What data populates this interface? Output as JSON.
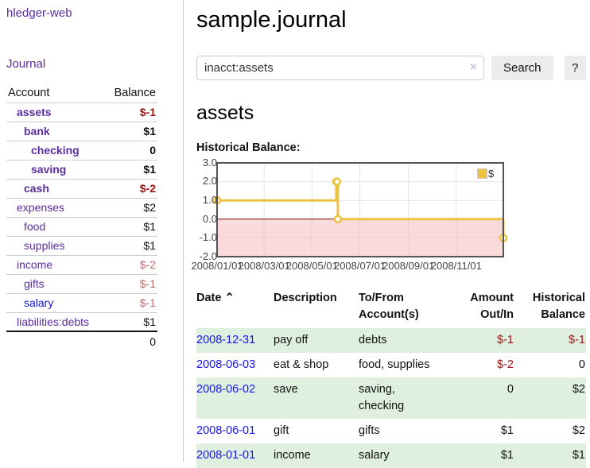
{
  "app": {
    "brand": "hledger-web"
  },
  "sidebar": {
    "journal_link": "Journal",
    "accounts_table": {
      "headers": {
        "account": "Account",
        "balance": "Balance"
      },
      "rows": [
        {
          "name": "assets",
          "balance": "$-1"
        },
        {
          "name": "bank",
          "balance": "$1"
        },
        {
          "name": "checking",
          "balance": "0"
        },
        {
          "name": "saving",
          "balance": "$1"
        },
        {
          "name": "cash",
          "balance": "$-2"
        },
        {
          "name": "expenses",
          "balance": "$2"
        },
        {
          "name": "food",
          "balance": "$1"
        },
        {
          "name": "supplies",
          "balance": "$1"
        },
        {
          "name": "income",
          "balance": "$-2"
        },
        {
          "name": "gifts",
          "balance": "$-1"
        },
        {
          "name": "salary",
          "balance": "$-1"
        },
        {
          "name": "liabilities:debts",
          "balance": "$1"
        }
      ],
      "total": "0"
    }
  },
  "main": {
    "title": "sample.journal",
    "search": {
      "value": "inacct:assets",
      "clear_icon": "×",
      "search_button": "Search",
      "help_button": "?"
    },
    "account_heading": "assets",
    "chart_title": "Historical Balance:"
  },
  "chart_data": {
    "type": "line",
    "title": "Historical Balance:",
    "series": [
      {
        "name": "$",
        "color": "#edc240",
        "step": true,
        "points": [
          [
            "2008-01-01",
            1
          ],
          [
            "2008-06-01",
            2
          ],
          [
            "2008-06-02",
            2
          ],
          [
            "2008-06-03",
            0
          ],
          [
            "2008-12-31",
            -1
          ]
        ]
      }
    ],
    "x_range": [
      "2008-01-01",
      "2008-12-31"
    ],
    "x_ticks": [
      "2008/01/01",
      "2008/03/01",
      "2008/05/01",
      "2008/07/01",
      "2008/09/01",
      "2008/11/01"
    ],
    "y_ticks": [
      3.0,
      2.0,
      1.0,
      0.0,
      -1.0,
      -2.0
    ],
    "ylim": [
      -2,
      3
    ],
    "grid": true,
    "legend_position": "top-right",
    "negative_region_color": "#f5b8b8",
    "zero_line_color": "#7c0a02",
    "border_color": "#545454"
  },
  "register": {
    "headers": {
      "date": "Date",
      "sort_icon": "⌃",
      "description": "Description",
      "accounts": "To/From\nAccount(s)",
      "amount": "Amount\nOut/In",
      "balance": "Historical\nBalance"
    },
    "rows": [
      {
        "date": "2008-12-31",
        "description": "pay off",
        "accounts": "debts",
        "amount": "$-1",
        "balance": "$-1"
      },
      {
        "date": "2008-06-03",
        "description": "eat & shop",
        "accounts": "food, supplies",
        "amount": "$-2",
        "balance": "0"
      },
      {
        "date": "2008-06-02",
        "description": "save",
        "accounts": "saving,\nchecking",
        "amount": "0",
        "balance": "$2"
      },
      {
        "date": "2008-06-01",
        "description": "gift",
        "accounts": "gifts",
        "amount": "$1",
        "balance": "$2"
      },
      {
        "date": "2008-01-01",
        "description": "income",
        "accounts": "salary",
        "amount": "$1",
        "balance": "$1"
      }
    ]
  },
  "colors": {
    "accent_purple": "#5a2ca0",
    "link_blue": "#1414ee",
    "negative_strong": "#a31414",
    "negative_soft": "#c06969",
    "row_green": "#dff0df",
    "series_gold": "#edc240"
  }
}
